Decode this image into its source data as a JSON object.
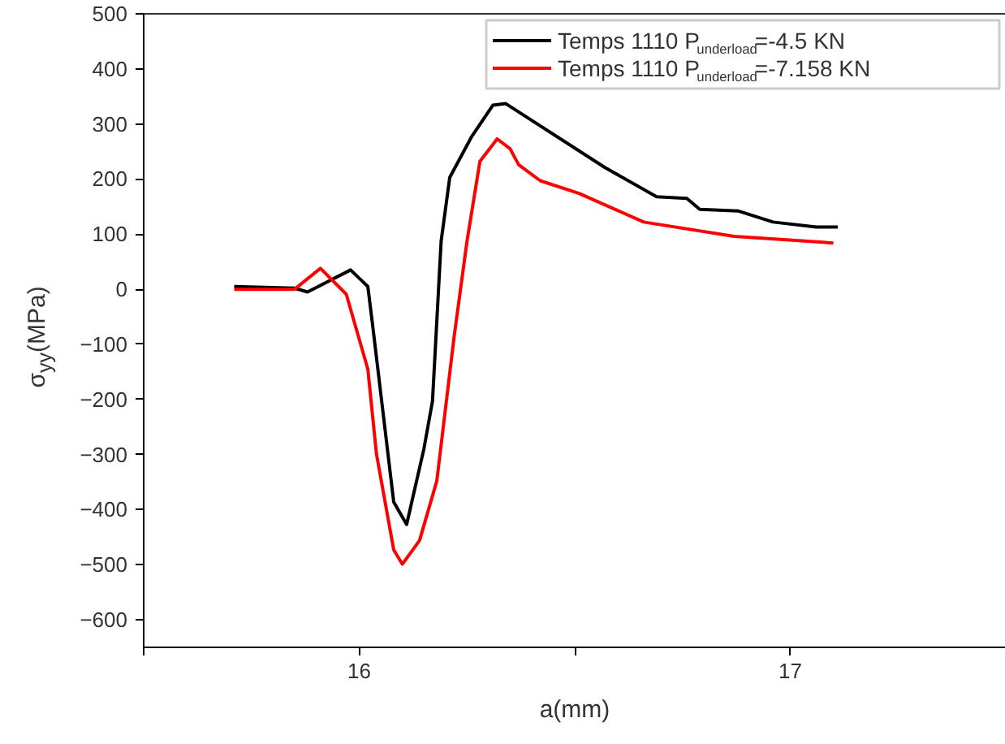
{
  "chart_data": {
    "type": "line",
    "xlabel": "a(mm)",
    "ylabel": "σ$_{yy}$(MPa)",
    "xlim": [
      15.5,
      17.5
    ],
    "xticks": [
      {
        "value": 15.5,
        "label": null
      },
      16,
      {
        "value": 16.5,
        "label": null
      },
      17,
      {
        "value": 17.5,
        "label": null
      }
    ],
    "ylim": [
      -650,
      500
    ],
    "yticks": [
      -600,
      -500,
      -400,
      -300,
      -200,
      -100,
      0,
      100,
      200,
      300,
      400,
      500
    ],
    "grid": false,
    "legend": "top right",
    "line_style": "solid",
    "marker": "none",
    "series": [
      {
        "name": "Temps 1110 P$_{underload}$=-4.5 KN",
        "color": "#000000",
        "x": [
          15.71,
          15.85,
          15.88,
          15.98,
          16.02,
          16.03,
          16.08,
          16.11,
          16.15,
          16.17,
          16.19,
          16.21,
          16.26,
          16.31,
          16.34,
          16.57,
          16.69,
          16.76,
          16.79,
          16.88,
          16.96,
          17.06,
          17.11
        ],
        "values": [
          5,
          2,
          -5,
          35,
          5,
          -58,
          -386,
          -427,
          -290,
          -203,
          87,
          203,
          276,
          334,
          337,
          221,
          168,
          165,
          145,
          142,
          122,
          113,
          113
        ]
      },
      {
        "name": "Temps 1110 P$_{underload}$=-7.158 KN",
        "color": "#ff0000",
        "x": [
          15.71,
          15.85,
          15.91,
          15.97,
          16.02,
          16.04,
          16.08,
          16.1,
          16.14,
          16.18,
          16.22,
          16.25,
          16.28,
          16.32,
          16.35,
          16.37,
          16.42,
          16.51,
          16.66,
          16.87,
          17.1
        ],
        "values": [
          0,
          0,
          38,
          -9,
          -145,
          -299,
          -473,
          -499,
          -456,
          -348,
          -87,
          87,
          232,
          273,
          255,
          226,
          197,
          174,
          122,
          96,
          84
        ]
      }
    ]
  }
}
